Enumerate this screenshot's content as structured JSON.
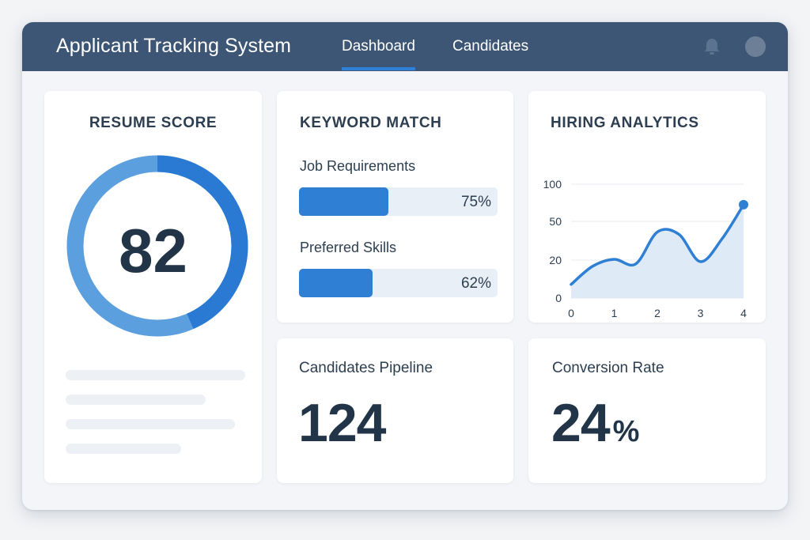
{
  "app": {
    "title": "Applicant Tracking System",
    "nav": [
      {
        "label": "Dashboard",
        "active": true
      },
      {
        "label": "Candidates",
        "active": false
      }
    ],
    "icons": {
      "notifications": "bell-icon",
      "user": "avatar"
    }
  },
  "resume_score": {
    "title": "RESUME SCORE",
    "value": "82",
    "score": 82,
    "max": 100
  },
  "keyword_match": {
    "title": "KEYWORD MATCH",
    "rows": [
      {
        "label": "Job Requirements",
        "value": 75,
        "display": "75%"
      },
      {
        "label": "Preferred Skills",
        "value": 62,
        "display": "62%"
      }
    ]
  },
  "hiring_analytics": {
    "title": "HIRING ANALYTICS",
    "chart_data": {
      "type": "area",
      "x": [
        0,
        0.5,
        1,
        1.5,
        2,
        2.5,
        3,
        3.5,
        4
      ],
      "y": [
        12,
        28,
        34,
        30,
        58,
        56,
        32,
        52,
        82
      ],
      "x_ticks": [
        "0",
        "1",
        "2",
        "3",
        "4"
      ],
      "y_ticks": [
        "0",
        "20",
        "50",
        "100"
      ],
      "xlim": [
        0,
        4
      ],
      "ylim": [
        0,
        100
      ],
      "grid": true,
      "colors": {
        "line": "#2f7fd4",
        "fill": "#dfeaf7"
      }
    }
  },
  "pipeline": {
    "title": "Candidates Pipeline",
    "value": "124"
  },
  "conversion": {
    "title": "Conversion Rate",
    "value": "24",
    "suffix": "%"
  },
  "colors": {
    "header": "#3e5675",
    "accent": "#2f80d8",
    "ring_light": "#5b9fde",
    "ring_dark": "#2a7ad3"
  }
}
